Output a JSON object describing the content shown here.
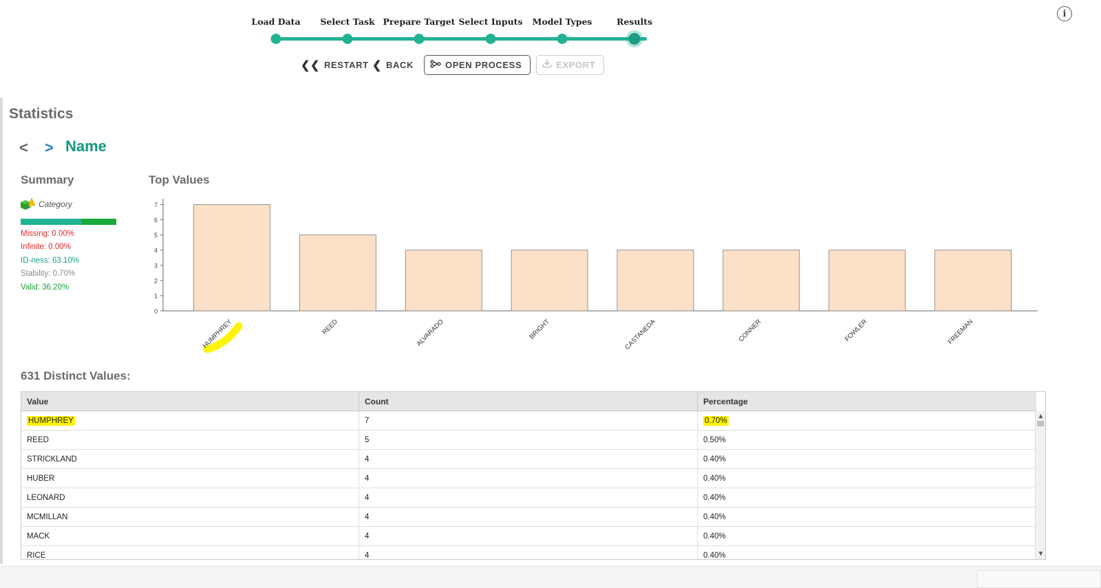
{
  "wizard": {
    "steps": [
      "Load Data",
      "Select Task",
      "Prepare Target",
      "Select Inputs",
      "Model Types",
      "Results"
    ],
    "current_step": "Results",
    "buttons": {
      "restart": "RESTART",
      "back": "BACK",
      "open_process": "OPEN PROCESS",
      "export": "EXPORT"
    },
    "accent": "#21b394"
  },
  "icons": {
    "info": "info-icon",
    "restart": "double-chevron-left-icon",
    "back": "chevron-left-icon",
    "open_process": "process-icon",
    "export": "download-icon",
    "category": "category-icon"
  },
  "page": {
    "title": "Statistics",
    "attribute_name": "Name"
  },
  "summary": {
    "title": "Summary",
    "type_label": "Category",
    "stats": {
      "missing": "Missing: 0.00%",
      "infinite": "Infinite: 0.00%",
      "idness": "ID-ness: 63.10%",
      "stability": "Stability: 0.70%",
      "valid": "Valid: 36.20%"
    },
    "quality_bar": {
      "idness": 0.631,
      "valid": 0.362
    }
  },
  "top_values": {
    "title": "Top Values"
  },
  "chart_data": {
    "type": "bar",
    "categories": [
      "HUMPHREY",
      "REED",
      "ALVARADO",
      "BRIGHT",
      "CASTANEDA",
      "CONNER",
      "FOWLER",
      "FREEMAN"
    ],
    "values": [
      7,
      5,
      4,
      4,
      4,
      4,
      4,
      4
    ],
    "yticks": [
      0,
      1,
      2,
      3,
      4,
      5,
      6,
      7
    ],
    "ylim": [
      0,
      7.2
    ],
    "bar_color": "#fde0c8",
    "highlighted_category": "HUMPHREY",
    "highlight_color": "#fff200"
  },
  "distinct": {
    "title": "631 Distinct Values:",
    "columns": [
      "Value",
      "Count",
      "Percentage"
    ],
    "rows": [
      [
        "HUMPHREY",
        "7",
        "0.70%"
      ],
      [
        "REED",
        "5",
        "0.50%"
      ],
      [
        "STRICKLAND",
        "4",
        "0.40%"
      ],
      [
        "HUBER",
        "4",
        "0.40%"
      ],
      [
        "LEONARD",
        "4",
        "0.40%"
      ],
      [
        "MCMILLAN",
        "4",
        "0.40%"
      ],
      [
        "MACK",
        "4",
        "0.40%"
      ],
      [
        "RICE",
        "4",
        "0.40%"
      ]
    ]
  }
}
